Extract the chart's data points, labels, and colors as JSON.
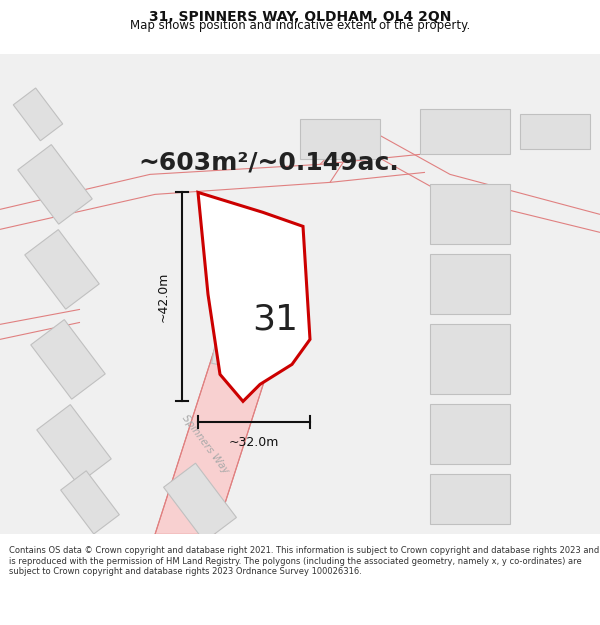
{
  "title_line1": "31, SPINNERS WAY, OLDHAM, OL4 2QN",
  "title_line2": "Map shows position and indicative extent of the property.",
  "area_text": "~603m²/~0.149ac.",
  "dim_width": "~32.0m",
  "dim_height": "~42.0m",
  "plot_number": "31",
  "footer_text": "Contains OS data © Crown copyright and database right 2021. This information is subject to Crown copyright and database rights 2023 and is reproduced with the permission of HM Land Registry. The polygons (including the associated geometry, namely x, y co-ordinates) are subject to Crown copyright and database rights 2023 Ordnance Survey 100026316.",
  "bg_color": "#f0f0f0",
  "road_color": "#f8d0d0",
  "road_line_color": "#e08080",
  "building_fill": "#e0e0e0",
  "building_edge": "#c0c0c0",
  "plot_fill": "#ffffff",
  "plot_edge": "#cc0000",
  "dim_color": "#111111",
  "text_color": "#222222",
  "title_color": "#111111",
  "footer_color": "#333333",
  "spinners_way_label": "Spinners Way",
  "title_fontsize": 10,
  "subtitle_fontsize": 8.5,
  "area_fontsize": 18,
  "plot_num_fontsize": 26,
  "dim_fontsize": 9,
  "footer_fontsize": 6.0
}
